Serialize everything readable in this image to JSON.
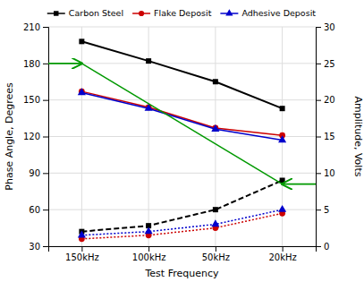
{
  "chart_data": {
    "type": "line",
    "categories": [
      "150kHz",
      "100kHz",
      "50kHz",
      "20kHz"
    ],
    "xlabel": "Test Frequency",
    "ylabel": "Phase Angle, Degrees",
    "y2label": "Amplitude, Volts",
    "ylim": [
      30,
      210
    ],
    "yticks": [
      30,
      60,
      90,
      120,
      150,
      180,
      210
    ],
    "y2lim": [
      0,
      30
    ],
    "y2ticks": [
      0,
      5,
      10,
      15,
      20,
      25,
      30
    ],
    "grid": true,
    "legend": "upper right",
    "series": [
      {
        "name": "Carbon Steel",
        "color": "#000000",
        "values": [
          198,
          182,
          165,
          143
        ],
        "marker": "square",
        "line_style": "solid"
      },
      {
        "name": "Flake Deposit",
        "color": "#cc0000",
        "values": [
          157,
          144,
          127,
          121
        ],
        "marker": "circle",
        "line_style": "solid"
      },
      {
        "name": "Adhesive Deposit",
        "color": "#0000cc",
        "values": [
          156,
          143,
          126,
          117
        ],
        "marker": "triangle",
        "line_style": "solid"
      },
      {
        "color": "#000000",
        "values": [
          2.0,
          2.8,
          5.0,
          9.0
        ],
        "axis": "y2",
        "marker": "square",
        "line_style": "dashed"
      },
      {
        "color": "#cc0000",
        "values": [
          1.0,
          1.5,
          2.5,
          4.5
        ],
        "axis": "y2",
        "marker": "circle",
        "line_style": "dotted"
      },
      {
        "color": "#0000cc",
        "values": [
          1.5,
          2.0,
          3.0,
          5.0
        ],
        "axis": "y2",
        "marker": "triangle",
        "line_style": "dotted"
      }
    ],
    "arrows": [
      {
        "category": "150kHz",
        "value": 25.0,
        "axis": "y2"
      },
      {
        "category": "20kHz",
        "value": 8.5,
        "axis": "y2"
      }
    ],
    "arrow_color": "#009900"
  }
}
